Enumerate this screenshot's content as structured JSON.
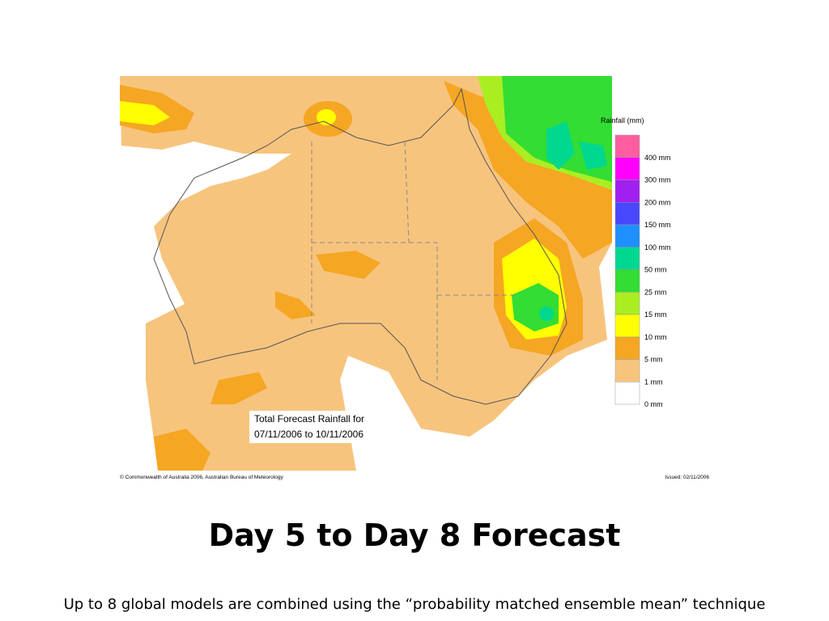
{
  "map": {
    "legend": {
      "title": "Rainfall (mm)",
      "items": [
        {
          "label": null,
          "color": "#ff5fa0"
        },
        {
          "label": "400 mm",
          "color": "#ff00ff"
        },
        {
          "label": "300 mm",
          "color": "#a020f0"
        },
        {
          "label": "200 mm",
          "color": "#4848ff"
        },
        {
          "label": "150 mm",
          "color": "#1e90ff"
        },
        {
          "label": "100 mm",
          "color": "#00d890"
        },
        {
          "label": "50 mm",
          "color": "#33dd33"
        },
        {
          "label": "25 mm",
          "color": "#aaee22"
        },
        {
          "label": "15 mm",
          "color": "#ffff00"
        },
        {
          "label": "10 mm",
          "color": "#f5a623"
        },
        {
          "label": "5 mm",
          "color": "#f7c47e"
        },
        {
          "label": "1 mm",
          "color": "#ffffff"
        }
      ],
      "bottom_label": "0 mm"
    },
    "annotation": [
      "Total Forecast Rainfall for",
      "07/11/2006 to 10/11/2006"
    ],
    "copyright": "© Commonwealth of Australia 2006, Australian Bureau of Meteorology",
    "issued": "Issued: 02/11/2006"
  },
  "title": "Day 5 to Day 8 Forecast",
  "caption": "Up to 8 global models are combined using the “probability matched ensemble mean” technique"
}
